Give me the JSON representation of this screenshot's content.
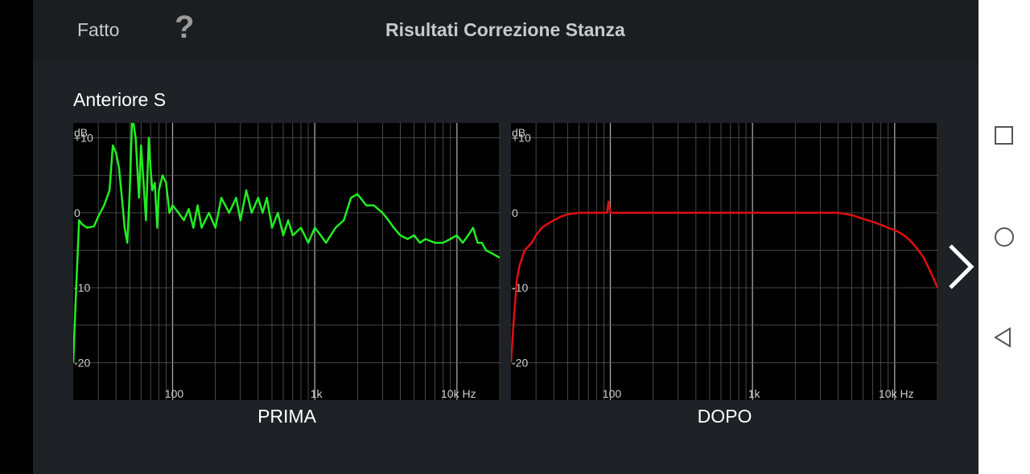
{
  "header": {
    "done_label": "Fatto",
    "help_label": "?",
    "title": "Risultati Correzione Stanza"
  },
  "speaker": {
    "name": "Anteriore S"
  },
  "charts": {
    "before_caption": "PRIMA",
    "after_caption": "DOPO"
  },
  "icons": {
    "next": "chevron-right-icon",
    "recent": "square-icon",
    "home": "circle-icon",
    "back": "triangle-back-icon"
  },
  "colors": {
    "before_line": "#22ee22",
    "after_line": "#e01010",
    "grid": "#5a5a5a",
    "background": "#1e2125"
  },
  "chart_data": [
    {
      "type": "line",
      "name": "PRIMA",
      "x_scale": "log",
      "xlim": [
        20,
        20000
      ],
      "ylim": [
        -25,
        12
      ],
      "grid": true,
      "yunit": "dB",
      "y_ticks": [
        "+10",
        "0",
        "-10",
        "-20"
      ],
      "y_tick_values": [
        10,
        0,
        -10,
        -20
      ],
      "x_ticks": [
        "100",
        "1k",
        "10k Hz"
      ],
      "x_tick_values": [
        100,
        1000,
        10000
      ],
      "series": [
        {
          "color": "#22ee22",
          "x": [
            20,
            21,
            22,
            23,
            25,
            28,
            30,
            33,
            36,
            38,
            40,
            42,
            44,
            46,
            48,
            50,
            52,
            55,
            58,
            60,
            62,
            65,
            68,
            70,
            72,
            75,
            78,
            80,
            85,
            90,
            95,
            100,
            110,
            120,
            130,
            140,
            150,
            160,
            180,
            200,
            220,
            250,
            280,
            300,
            330,
            360,
            400,
            430,
            460,
            500,
            550,
            600,
            650,
            700,
            800,
            900,
            1000,
            1100,
            1200,
            1400,
            1600,
            1800,
            2000,
            2300,
            2600,
            3000,
            3300,
            3600,
            4000,
            4500,
            5000,
            5500,
            6000,
            7000,
            8000,
            9000,
            10000,
            11000,
            12000,
            13000,
            14000,
            15000,
            16000,
            18000,
            20000
          ],
          "y": [
            -20,
            -10,
            -1,
            -1.5,
            -2,
            -1.8,
            -0.5,
            1,
            3,
            9,
            8,
            6,
            2,
            -2,
            -4,
            3,
            13,
            10,
            2,
            9,
            5,
            -1,
            10,
            6,
            3,
            4,
            -2,
            3,
            5,
            4,
            0,
            1,
            0,
            -1,
            0.5,
            -2,
            1,
            -2,
            0,
            -2,
            2,
            0,
            2,
            -1,
            3,
            0,
            2,
            0,
            2,
            -2,
            0,
            -3,
            -1,
            -3,
            -2,
            -4,
            -2,
            -3,
            -4,
            -2,
            -1,
            2,
            2.5,
            1,
            1,
            0,
            -1,
            -2,
            -3,
            -3.5,
            -3,
            -4,
            -3.5,
            -4,
            -4,
            -3.5,
            -3,
            -4,
            -3,
            -2,
            -4,
            -4,
            -5,
            -5.5,
            -6
          ]
        }
      ]
    },
    {
      "type": "line",
      "name": "DOPO",
      "x_scale": "log",
      "xlim": [
        20,
        20000
      ],
      "ylim": [
        -25,
        12
      ],
      "grid": true,
      "yunit": "dB",
      "y_ticks": [
        "+10",
        "0",
        "-10",
        "-20"
      ],
      "y_tick_values": [
        10,
        0,
        -10,
        -20
      ],
      "x_ticks": [
        "100",
        "1k",
        "10k Hz"
      ],
      "x_tick_values": [
        100,
        1000,
        10000
      ],
      "series": [
        {
          "color": "#e01010",
          "x": [
            20,
            21,
            22,
            23,
            25,
            28,
            30,
            33,
            36,
            40,
            45,
            50,
            60,
            70,
            80,
            90,
            95,
            97,
            100,
            110,
            150,
            200,
            300,
            500,
            1000,
            2000,
            3000,
            4000,
            5000,
            6000,
            7000,
            8000,
            9000,
            10000,
            11000,
            12000,
            13000,
            14000,
            15000,
            16000,
            17000,
            18000,
            19000,
            20000
          ],
          "y": [
            -20,
            -14,
            -9,
            -7,
            -5,
            -4,
            -3,
            -2,
            -1.5,
            -1,
            -0.5,
            -0.2,
            0,
            0,
            0,
            0,
            0,
            1.5,
            0,
            0,
            0,
            0,
            0,
            0,
            0,
            0,
            0,
            0,
            -0.3,
            -0.8,
            -1.2,
            -1.6,
            -2,
            -2.3,
            -2.7,
            -3.2,
            -3.8,
            -4.5,
            -5.2,
            -6,
            -7,
            -8,
            -9,
            -10
          ]
        }
      ]
    }
  ]
}
